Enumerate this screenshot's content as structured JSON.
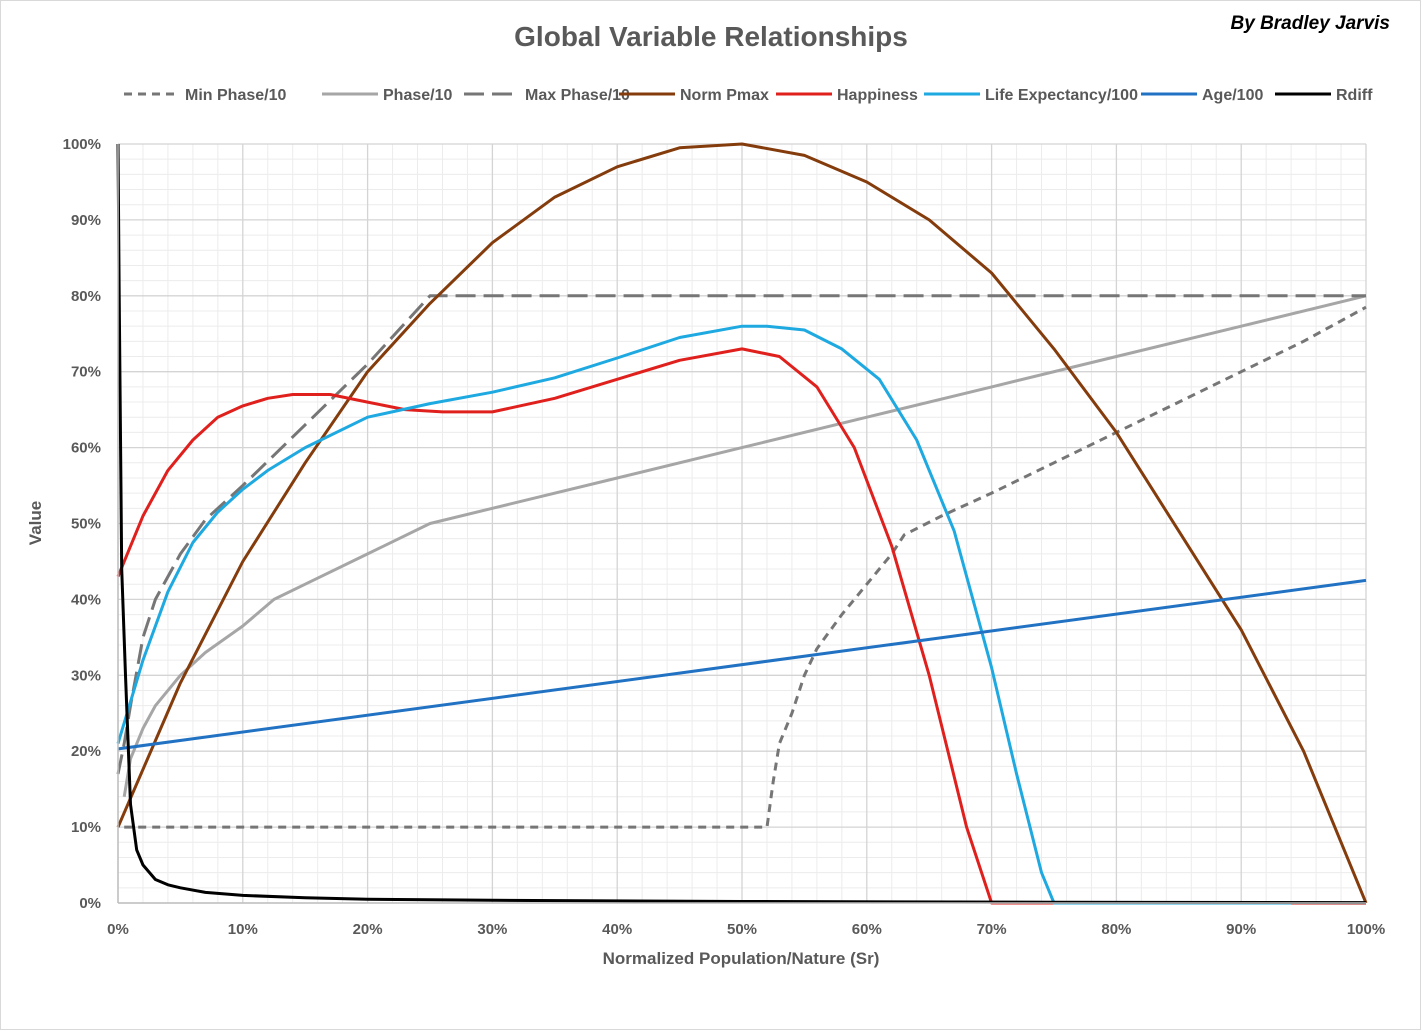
{
  "author": "By Bradley Jarvis",
  "chart_data": {
    "type": "line",
    "title": "Global Variable Relationships",
    "xlabel": "Normalized Population/Nature (Sr)",
    "ylabel": "Value",
    "xlim": [
      0,
      100
    ],
    "ylim": [
      0,
      100
    ],
    "x_ticks": [
      "0%",
      "10%",
      "20%",
      "30%",
      "40%",
      "50%",
      "60%",
      "70%",
      "80%",
      "90%",
      "100%"
    ],
    "y_ticks": [
      "0%",
      "10%",
      "20%",
      "30%",
      "40%",
      "50%",
      "60%",
      "70%",
      "80%",
      "90%",
      "100%"
    ],
    "grid": true,
    "legend_position": "top",
    "series": [
      {
        "name": "Min Phase/10",
        "color": "#767676",
        "dash": "short-dash",
        "x": [
          0.5,
          52,
          52.5,
          53,
          54,
          55,
          56,
          58,
          60,
          62,
          63,
          66,
          70,
          75,
          80,
          85,
          90,
          95,
          100
        ],
        "y": [
          10,
          10,
          16,
          21,
          25,
          30,
          33.5,
          38,
          42,
          46,
          48.5,
          51,
          54,
          58,
          62,
          66,
          70,
          74,
          78.5
        ]
      },
      {
        "name": "Phase/10",
        "color": "#a6a6a6",
        "dash": "solid",
        "x": [
          0.5,
          1,
          2,
          3,
          5,
          7,
          10,
          12.5,
          15,
          20,
          25,
          30,
          40,
          50,
          60,
          70,
          80,
          90,
          100
        ],
        "y": [
          14,
          19,
          23,
          26,
          30,
          33,
          36.5,
          40,
          42,
          46,
          50,
          52,
          56,
          60,
          64,
          68,
          72,
          76,
          80
        ]
      },
      {
        "name": "Max Phase/10",
        "color": "#767676",
        "dash": "long-dash",
        "x": [
          0,
          0.5,
          1,
          2,
          3,
          5,
          7,
          10,
          12.5,
          15,
          20,
          25,
          30,
          40,
          50,
          60,
          70,
          80,
          90,
          100
        ],
        "y": [
          17,
          21,
          26,
          35,
          40,
          46,
          50.5,
          55,
          59,
          63,
          71,
          80,
          80,
          80,
          80,
          80,
          80,
          80,
          80,
          80
        ]
      },
      {
        "name": "Norm Pmax",
        "color": "#843c0c",
        "dash": "solid",
        "x": [
          0,
          5,
          10,
          15,
          20,
          25,
          30,
          35,
          40,
          45,
          50,
          55,
          60,
          65,
          70,
          75,
          80,
          85,
          90,
          95,
          100
        ],
        "y": [
          10,
          29,
          45,
          58,
          70,
          79,
          87,
          93,
          97,
          99.5,
          100,
          98.5,
          95,
          90,
          83,
          73,
          62,
          49,
          36,
          20,
          0
        ]
      },
      {
        "name": "Happiness",
        "color": "#e0201d",
        "dash": "solid",
        "x": [
          0,
          2,
          4,
          6,
          8,
          10,
          12,
          14,
          17,
          20,
          23,
          26,
          30,
          35,
          40,
          45,
          50,
          53,
          56,
          59,
          62,
          65,
          68,
          70,
          75,
          80,
          90,
          100
        ],
        "y": [
          43,
          51,
          57,
          61,
          64,
          65.5,
          66.5,
          67,
          67,
          66,
          65,
          64.7,
          64.7,
          66.5,
          69,
          71.5,
          73,
          72,
          68,
          60,
          47,
          30,
          10,
          0,
          0,
          0,
          0,
          0
        ]
      },
      {
        "name": "Life Expectancy/100",
        "color": "#1ea9e1",
        "dash": "solid",
        "x": [
          0,
          2,
          4,
          6,
          8,
          10,
          12,
          15,
          20,
          25,
          30,
          35,
          40,
          45,
          50,
          52,
          55,
          58,
          61,
          64,
          67,
          70,
          72,
          74,
          75,
          80,
          85,
          90,
          94
        ],
        "y": [
          21,
          32,
          41,
          47.5,
          51.5,
          54.5,
          57,
          60,
          64,
          65.8,
          67.3,
          69.2,
          71.8,
          74.5,
          76,
          76,
          75.5,
          73,
          69,
          61,
          49,
          31,
          17,
          4,
          0,
          0,
          0,
          0,
          0
        ]
      },
      {
        "name": "Age/100",
        "color": "#2272c4",
        "dash": "solid",
        "x": [
          0,
          100
        ],
        "y": [
          20.3,
          42.5
        ]
      },
      {
        "name": "Rdiff",
        "color": "#000000",
        "dash": "solid",
        "x": [
          0,
          0.1,
          0.3,
          0.6,
          1,
          1.5,
          2,
          3,
          4,
          5,
          7,
          10,
          15,
          20,
          30,
          50,
          75,
          100
        ],
        "y": [
          100,
          80,
          44,
          30,
          13,
          7,
          5,
          3.1,
          2.4,
          2,
          1.4,
          1,
          0.7,
          0.5,
          0.35,
          0.2,
          0.1,
          0.05
        ]
      }
    ]
  }
}
